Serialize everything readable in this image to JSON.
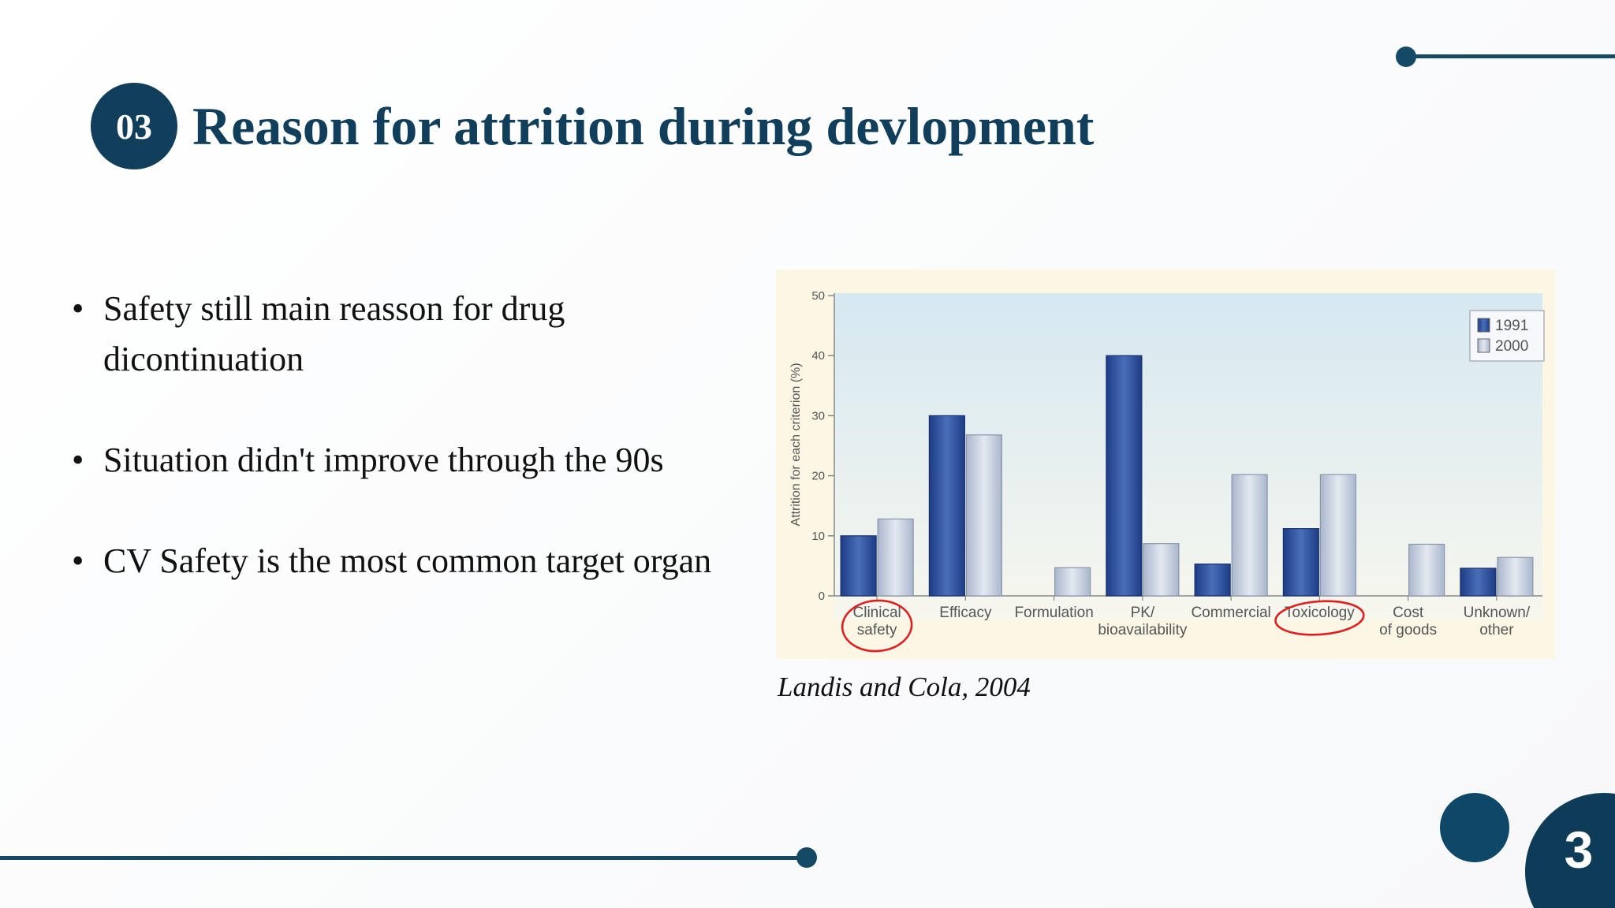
{
  "slide": {
    "section_number": "03",
    "title": "Reason for attrition during devlopment",
    "bullets": [
      "Safety still main reasson for drug dicontinuation",
      "Situation didn't improve through the 90s",
      "CV Safety is the most common target organ"
    ],
    "citation": "Landis and Cola, 2004",
    "page_number": "3",
    "colors": {
      "brand": "#103e5b",
      "accent_line": "#154a66",
      "highlight_circle": "#e02020"
    }
  },
  "chart_data": {
    "type": "bar",
    "title": "",
    "xlabel": "",
    "ylabel": "Attrition for each criterion (%)",
    "ylim": [
      0,
      50
    ],
    "yticks": [
      "0",
      "10",
      "20",
      "30",
      "40",
      "50"
    ],
    "categories": [
      [
        "Clinical",
        "safety"
      ],
      [
        "Efficacy"
      ],
      [
        "Formulation"
      ],
      [
        "PK/",
        "bioavailability"
      ],
      [
        "Commercial"
      ],
      [
        "Toxicology"
      ],
      [
        "Cost",
        "of goods"
      ],
      [
        "Unknown/",
        "other"
      ]
    ],
    "series": [
      {
        "name": "1991",
        "color": "#2c4f9a",
        "values": [
          10,
          30,
          0,
          40,
          5.3,
          11.2,
          0,
          4.6
        ]
      },
      {
        "name": "2000",
        "color": "#c5cfe0",
        "values": [
          12.8,
          26.8,
          4.7,
          8.7,
          20.2,
          20.2,
          8.6,
          6.4
        ]
      }
    ],
    "highlighted_categories": [
      "Clinical safety",
      "Toxicology"
    ],
    "legend_position": "top-right",
    "grid": false
  }
}
